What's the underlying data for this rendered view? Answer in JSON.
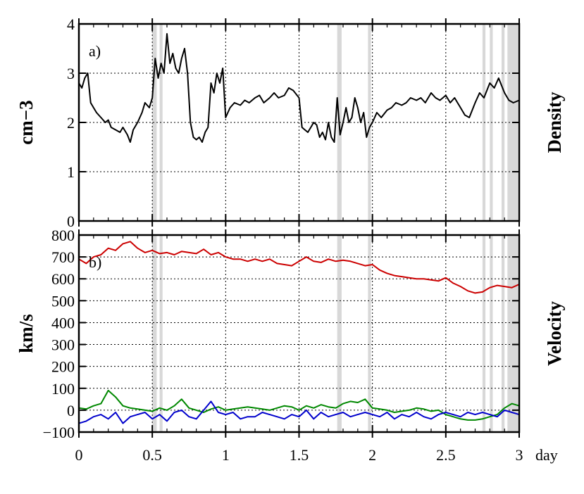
{
  "chart_data": [
    {
      "panel_label": "a)",
      "type": "line",
      "ylabel": "cm−3",
      "right_label": "Density",
      "xlim": [
        0,
        3
      ],
      "ylim": [
        0,
        4
      ],
      "yticks": [
        "0",
        "1",
        "2",
        "3",
        "4"
      ],
      "grid": true,
      "shaded_intervals": [
        [
          0.5,
          0.53
        ],
        [
          0.55,
          0.57
        ],
        [
          1.76,
          1.79
        ],
        [
          1.97,
          1.99
        ],
        [
          2.75,
          2.77
        ],
        [
          2.8,
          2.82
        ],
        [
          2.88,
          2.9
        ],
        [
          2.92,
          2.99
        ]
      ],
      "series": [
        {
          "color": "#000000",
          "x": [
            0.0,
            0.02,
            0.04,
            0.06,
            0.08,
            0.1,
            0.12,
            0.15,
            0.18,
            0.2,
            0.22,
            0.25,
            0.28,
            0.3,
            0.33,
            0.35,
            0.37,
            0.4,
            0.43,
            0.45,
            0.48,
            0.5,
            0.52,
            0.54,
            0.56,
            0.58,
            0.6,
            0.62,
            0.64,
            0.66,
            0.68,
            0.7,
            0.72,
            0.74,
            0.76,
            0.78,
            0.8,
            0.82,
            0.84,
            0.86,
            0.88,
            0.9,
            0.92,
            0.94,
            0.96,
            0.98,
            1.0,
            1.03,
            1.06,
            1.1,
            1.13,
            1.16,
            1.2,
            1.23,
            1.26,
            1.3,
            1.33,
            1.36,
            1.4,
            1.43,
            1.46,
            1.5,
            1.52,
            1.54,
            1.56,
            1.58,
            1.6,
            1.62,
            1.64,
            1.66,
            1.68,
            1.7,
            1.72,
            1.74,
            1.76,
            1.78,
            1.8,
            1.82,
            1.84,
            1.86,
            1.88,
            1.9,
            1.92,
            1.94,
            1.96,
            1.98,
            2.0,
            2.03,
            2.06,
            2.1,
            2.13,
            2.16,
            2.2,
            2.23,
            2.26,
            2.3,
            2.33,
            2.36,
            2.4,
            2.43,
            2.46,
            2.5,
            2.53,
            2.56,
            2.6,
            2.63,
            2.66,
            2.7,
            2.73,
            2.76,
            2.8,
            2.83,
            2.86,
            2.9,
            2.93,
            2.96,
            3.0
          ],
          "y": [
            2.8,
            2.7,
            2.9,
            3.0,
            2.4,
            2.3,
            2.2,
            2.1,
            2.0,
            2.05,
            1.9,
            1.85,
            1.8,
            1.9,
            1.75,
            1.6,
            1.85,
            2.0,
            2.2,
            2.4,
            2.3,
            2.5,
            3.3,
            2.9,
            3.2,
            3.0,
            3.8,
            3.2,
            3.4,
            3.1,
            3.0,
            3.3,
            3.5,
            3.0,
            2.0,
            1.7,
            1.65,
            1.7,
            1.6,
            1.8,
            1.9,
            2.8,
            2.6,
            3.0,
            2.8,
            3.1,
            2.1,
            2.3,
            2.4,
            2.35,
            2.45,
            2.4,
            2.5,
            2.55,
            2.4,
            2.5,
            2.6,
            2.5,
            2.55,
            2.7,
            2.65,
            2.5,
            1.9,
            1.85,
            1.8,
            1.9,
            2.0,
            1.95,
            1.7,
            1.8,
            1.65,
            2.0,
            1.7,
            1.6,
            2.5,
            1.75,
            2.0,
            2.3,
            2.0,
            2.1,
            2.5,
            2.3,
            2.0,
            2.2,
            1.7,
            1.9,
            2.0,
            2.2,
            2.1,
            2.25,
            2.3,
            2.4,
            2.35,
            2.4,
            2.5,
            2.45,
            2.5,
            2.4,
            2.6,
            2.5,
            2.45,
            2.55,
            2.4,
            2.5,
            2.3,
            2.15,
            2.1,
            2.4,
            2.6,
            2.5,
            2.8,
            2.7,
            2.9,
            2.6,
            2.45,
            2.4,
            2.45
          ]
        }
      ]
    },
    {
      "panel_label": "b)",
      "type": "line",
      "ylabel": "km/s",
      "right_label": "Velocity",
      "xlabel": "day",
      "xlim": [
        0,
        3
      ],
      "ylim": [
        -100,
        800
      ],
      "xticks": [
        "0",
        "0.5",
        "1",
        "1.5",
        "2",
        "2.5",
        "3"
      ],
      "yticks": [
        "−100",
        "0",
        "100",
        "200",
        "300",
        "400",
        "500",
        "600",
        "700",
        "800"
      ],
      "grid": true,
      "shaded_intervals": [
        [
          0.5,
          0.53
        ],
        [
          0.55,
          0.57
        ],
        [
          1.76,
          1.79
        ],
        [
          1.97,
          1.99
        ],
        [
          2.75,
          2.77
        ],
        [
          2.8,
          2.82
        ],
        [
          2.88,
          2.9
        ],
        [
          2.92,
          2.99
        ]
      ],
      "series": [
        {
          "color": "#cc0000",
          "x": [
            0.0,
            0.05,
            0.1,
            0.15,
            0.2,
            0.25,
            0.3,
            0.35,
            0.4,
            0.45,
            0.5,
            0.55,
            0.6,
            0.65,
            0.7,
            0.75,
            0.8,
            0.85,
            0.9,
            0.95,
            1.0,
            1.05,
            1.1,
            1.15,
            1.2,
            1.25,
            1.3,
            1.35,
            1.4,
            1.45,
            1.5,
            1.55,
            1.6,
            1.65,
            1.7,
            1.75,
            1.8,
            1.85,
            1.9,
            1.95,
            2.0,
            2.05,
            2.1,
            2.15,
            2.2,
            2.25,
            2.3,
            2.35,
            2.4,
            2.45,
            2.5,
            2.55,
            2.6,
            2.65,
            2.7,
            2.75,
            2.8,
            2.85,
            2.9,
            2.95,
            3.0
          ],
          "y": [
            690,
            670,
            700,
            710,
            740,
            730,
            760,
            770,
            740,
            720,
            730,
            715,
            720,
            710,
            725,
            720,
            715,
            735,
            710,
            720,
            700,
            690,
            690,
            680,
            690,
            680,
            690,
            670,
            665,
            660,
            680,
            700,
            680,
            675,
            690,
            680,
            685,
            680,
            670,
            660,
            665,
            640,
            625,
            615,
            610,
            605,
            600,
            600,
            595,
            590,
            605,
            580,
            565,
            545,
            535,
            540,
            560,
            570,
            565,
            560,
            575
          ]
        },
        {
          "color": "#008800",
          "x": [
            0.0,
            0.05,
            0.1,
            0.15,
            0.2,
            0.25,
            0.3,
            0.35,
            0.4,
            0.45,
            0.5,
            0.55,
            0.6,
            0.65,
            0.7,
            0.75,
            0.8,
            0.85,
            0.9,
            0.95,
            1.0,
            1.05,
            1.1,
            1.15,
            1.2,
            1.25,
            1.3,
            1.35,
            1.4,
            1.45,
            1.5,
            1.55,
            1.6,
            1.65,
            1.7,
            1.75,
            1.8,
            1.85,
            1.9,
            1.95,
            2.0,
            2.05,
            2.1,
            2.15,
            2.2,
            2.25,
            2.3,
            2.35,
            2.4,
            2.45,
            2.5,
            2.55,
            2.6,
            2.65,
            2.7,
            2.75,
            2.8,
            2.85,
            2.9,
            2.95,
            3.0
          ],
          "y": [
            10,
            5,
            20,
            30,
            90,
            60,
            20,
            10,
            5,
            0,
            -5,
            10,
            0,
            20,
            50,
            10,
            0,
            -10,
            5,
            15,
            0,
            5,
            10,
            15,
            10,
            5,
            0,
            10,
            20,
            15,
            0,
            20,
            10,
            25,
            15,
            10,
            30,
            40,
            35,
            50,
            10,
            5,
            0,
            -10,
            -5,
            0,
            10,
            5,
            -5,
            0,
            -20,
            -30,
            -40,
            -45,
            -45,
            -40,
            -30,
            -20,
            10,
            30,
            20
          ]
        },
        {
          "color": "#0000cc",
          "x": [
            0.0,
            0.05,
            0.1,
            0.15,
            0.2,
            0.25,
            0.3,
            0.35,
            0.4,
            0.45,
            0.5,
            0.55,
            0.6,
            0.65,
            0.7,
            0.75,
            0.8,
            0.85,
            0.9,
            0.95,
            1.0,
            1.05,
            1.1,
            1.15,
            1.2,
            1.25,
            1.3,
            1.35,
            1.4,
            1.45,
            1.5,
            1.55,
            1.6,
            1.65,
            1.7,
            1.75,
            1.8,
            1.85,
            1.9,
            1.95,
            2.0,
            2.05,
            2.1,
            2.15,
            2.2,
            2.25,
            2.3,
            2.35,
            2.4,
            2.45,
            2.5,
            2.55,
            2.6,
            2.65,
            2.7,
            2.75,
            2.8,
            2.85,
            2.9,
            2.95,
            3.0
          ],
          "y": [
            -60,
            -50,
            -30,
            -20,
            -40,
            -10,
            -60,
            -30,
            -20,
            -10,
            -40,
            -20,
            -50,
            -10,
            0,
            -30,
            -40,
            0,
            40,
            -10,
            -20,
            -10,
            -40,
            -30,
            -30,
            -10,
            -20,
            -30,
            -40,
            -20,
            -30,
            0,
            -40,
            -10,
            -30,
            -20,
            -10,
            -30,
            -20,
            -10,
            -20,
            -30,
            -10,
            -40,
            -20,
            -30,
            -10,
            -30,
            -40,
            -20,
            -10,
            -20,
            -30,
            -10,
            -20,
            -10,
            -20,
            -30,
            0,
            -10,
            -20
          ]
        }
      ]
    }
  ]
}
